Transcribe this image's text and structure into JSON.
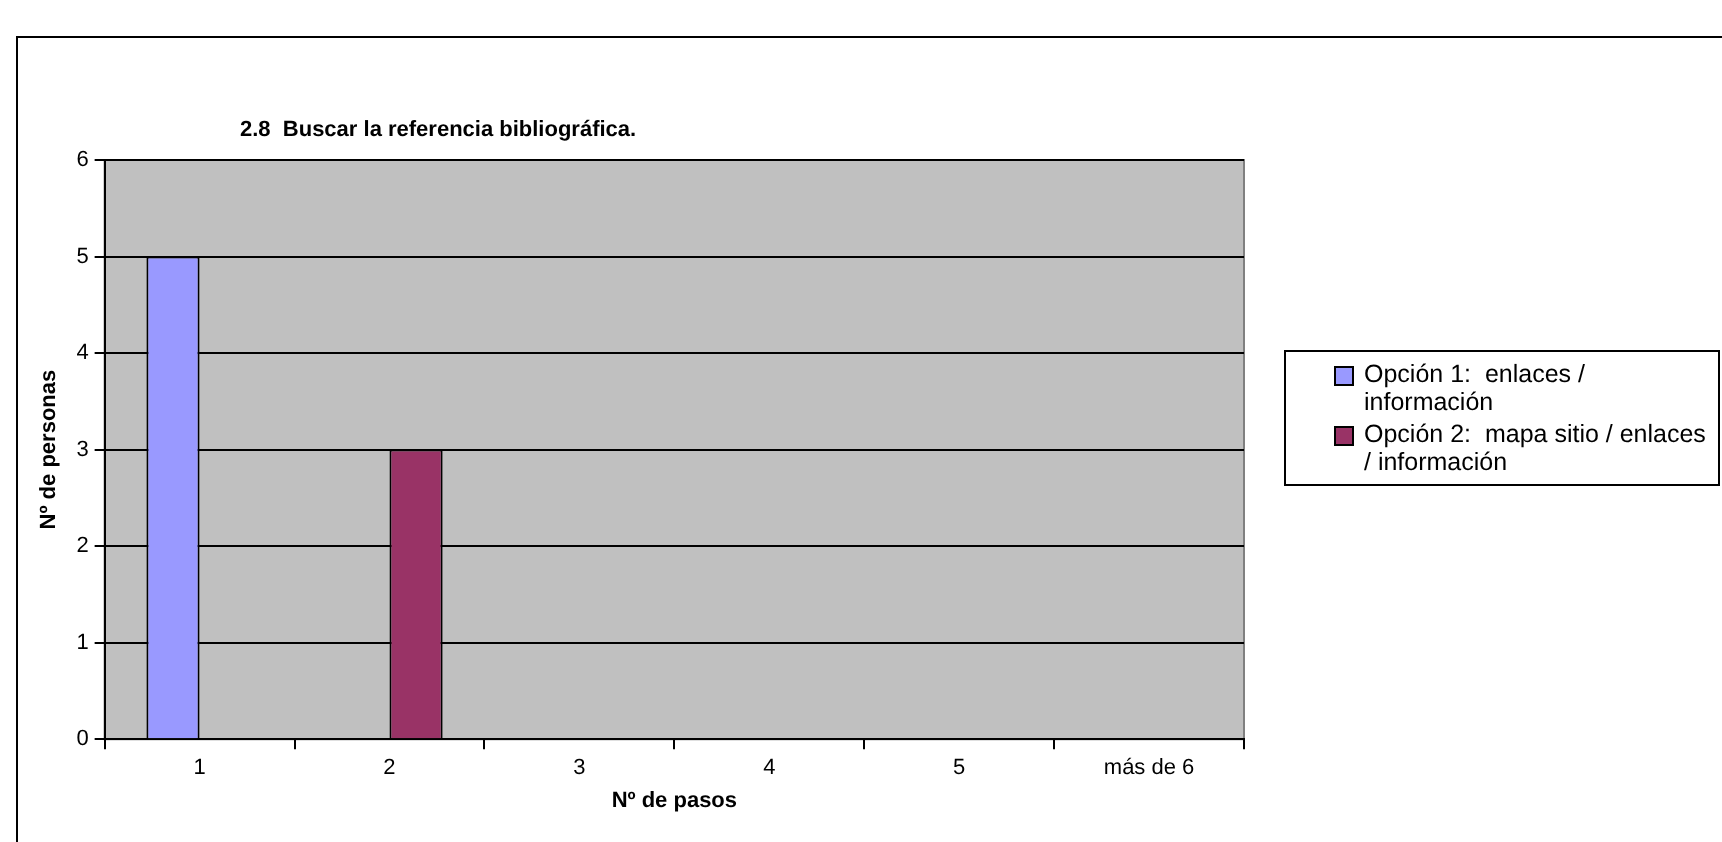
{
  "chart_data": {
    "type": "bar",
    "title": "2.8  Buscar la referencia bibliográfica.",
    "xlabel": "Nº de pasos",
    "ylabel": "Nº de personas",
    "categories": [
      "1",
      "2",
      "3",
      "4",
      "5",
      "más de 6"
    ],
    "series": [
      {
        "name": "Opción 1:  enlaces / información",
        "color": "#9999ff",
        "values": [
          5,
          0,
          0,
          0,
          0,
          0
        ]
      },
      {
        "name": "Opción 2:  mapa sitio / enlaces / información",
        "color": "#993366",
        "values": [
          0,
          3,
          0,
          0,
          0,
          0
        ]
      }
    ],
    "ylim": [
      0,
      6
    ],
    "yticks": [
      0,
      1,
      2,
      3,
      4,
      5,
      6
    ],
    "grid": "y",
    "legend": "right"
  }
}
